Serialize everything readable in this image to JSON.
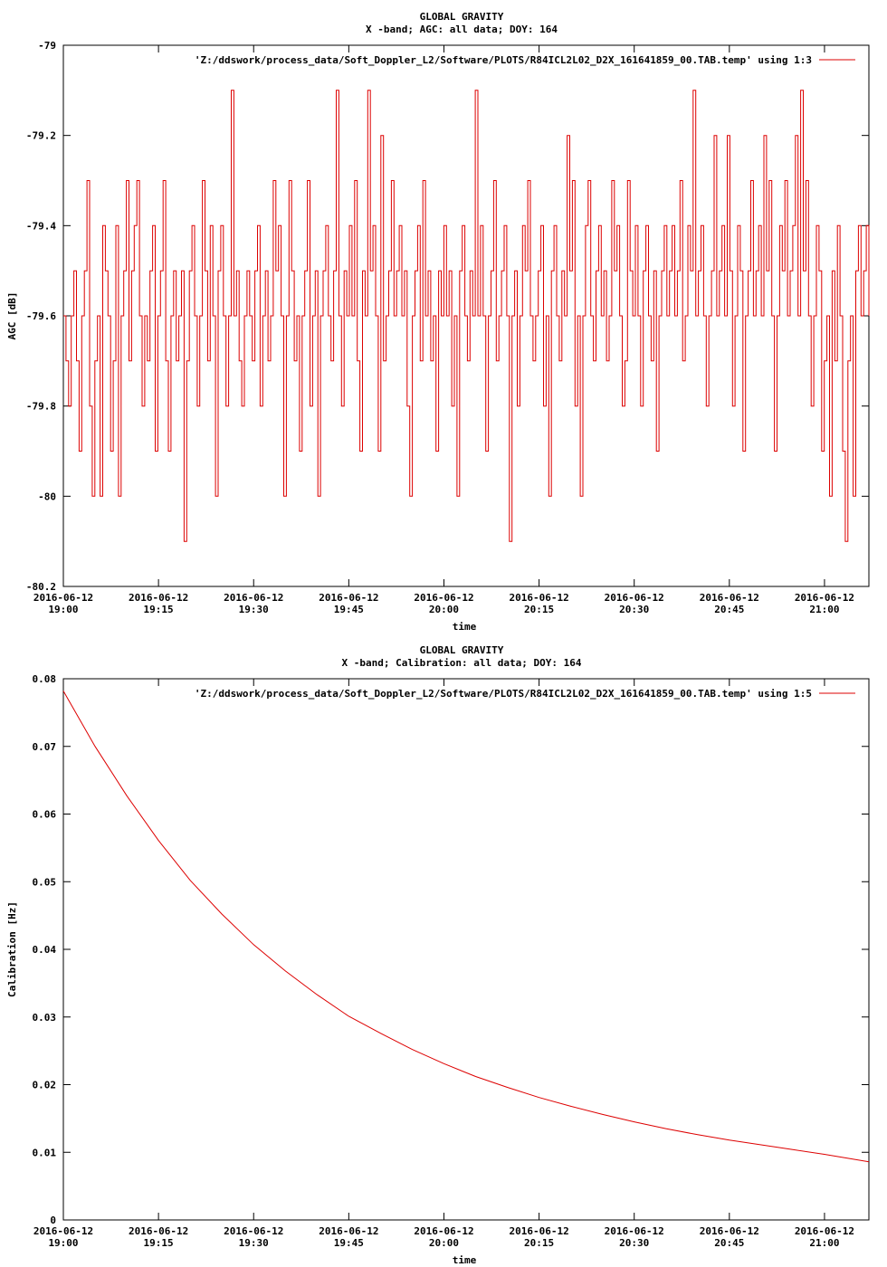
{
  "chart_data": [
    {
      "type": "line",
      "title": "GLOBAL GRAVITY",
      "subtitle": "X -band; AGC: all data; DOY: 164",
      "xlabel": "time",
      "ylabel": "AGC [dB]",
      "ylim": [
        -80.2,
        -79
      ],
      "xlim_minutes": [
        0,
        127
      ],
      "x_ticks": [
        {
          "minutes": 0,
          "line1": "2016-06-12",
          "line2": "19:00"
        },
        {
          "minutes": 15,
          "line1": "2016-06-12",
          "line2": "19:15"
        },
        {
          "minutes": 30,
          "line1": "2016-06-12",
          "line2": "19:30"
        },
        {
          "minutes": 45,
          "line1": "2016-06-12",
          "line2": "19:45"
        },
        {
          "minutes": 60,
          "line1": "2016-06-12",
          "line2": "20:00"
        },
        {
          "minutes": 75,
          "line1": "2016-06-12",
          "line2": "20:15"
        },
        {
          "minutes": 90,
          "line1": "2016-06-12",
          "line2": "20:30"
        },
        {
          "minutes": 105,
          "line1": "2016-06-12",
          "line2": "20:45"
        },
        {
          "minutes": 120,
          "line1": "2016-06-12",
          "line2": "21:00"
        }
      ],
      "y_ticks": [
        {
          "value": -79,
          "label": "-79"
        },
        {
          "value": -79.2,
          "label": "-79.2"
        },
        {
          "value": -79.4,
          "label": "-79.4"
        },
        {
          "value": -79.6,
          "label": "-79.6"
        },
        {
          "value": -79.8,
          "label": "-79.8"
        },
        {
          "value": -80,
          "label": "-80"
        },
        {
          "value": -80.2,
          "label": "-80.2"
        }
      ],
      "series": [
        {
          "name": "'Z:/ddswork/process_data/Soft_Doppler_L2/Software/PLOTS/R84ICL2L02_D2X_161641859_00.TAB.temp' using 1:3",
          "color": "#dd0000",
          "y_values_description": "noisy AGC samples between -80.1 and -79.1 dB, centred near -79.6 dB",
          "y": [
            -79.6,
            -79.7,
            -79.8,
            -79.6,
            -79.5,
            -79.7,
            -79.9,
            -79.6,
            -79.5,
            -79.3,
            -79.8,
            -80.0,
            -79.7,
            -79.6,
            -80.0,
            -79.4,
            -79.5,
            -79.6,
            -79.9,
            -79.7,
            -79.4,
            -80.0,
            -79.6,
            -79.5,
            -79.3,
            -79.7,
            -79.5,
            -79.4,
            -79.3,
            -79.6,
            -79.8,
            -79.6,
            -79.7,
            -79.5,
            -79.4,
            -79.9,
            -79.6,
            -79.5,
            -79.3,
            -79.7,
            -79.9,
            -79.6,
            -79.5,
            -79.7,
            -79.6,
            -79.5,
            -80.1,
            -79.7,
            -79.5,
            -79.4,
            -79.6,
            -79.8,
            -79.6,
            -79.3,
            -79.5,
            -79.7,
            -79.4,
            -79.6,
            -80.0,
            -79.5,
            -79.4,
            -79.6,
            -79.8,
            -79.6,
            -79.1,
            -79.6,
            -79.5,
            -79.7,
            -79.8,
            -79.6,
            -79.5,
            -79.6,
            -79.7,
            -79.5,
            -79.4,
            -79.8,
            -79.6,
            -79.5,
            -79.7,
            -79.6,
            -79.3,
            -79.5,
            -79.4,
            -79.6,
            -80.0,
            -79.6,
            -79.3,
            -79.5,
            -79.7,
            -79.6,
            -79.9,
            -79.6,
            -79.5,
            -79.3,
            -79.8,
            -79.6,
            -79.5,
            -80.0,
            -79.6,
            -79.5,
            -79.4,
            -79.6,
            -79.7,
            -79.5,
            -79.1,
            -79.6,
            -79.8,
            -79.5,
            -79.6,
            -79.4,
            -79.6,
            -79.3,
            -79.7,
            -79.9,
            -79.5,
            -79.6,
            -79.1,
            -79.5,
            -79.4,
            -79.6,
            -79.9,
            -79.2,
            -79.7,
            -79.6,
            -79.5,
            -79.3,
            -79.6,
            -79.5,
            -79.4,
            -79.6,
            -79.5,
            -79.8,
            -80.0,
            -79.6,
            -79.5,
            -79.4,
            -79.7,
            -79.3,
            -79.6,
            -79.5,
            -79.7,
            -79.6,
            -79.9,
            -79.5,
            -79.6,
            -79.4,
            -79.6,
            -79.5,
            -79.8,
            -79.6,
            -80.0,
            -79.5,
            -79.4,
            -79.6,
            -79.7,
            -79.5,
            -79.6,
            -79.1,
            -79.6,
            -79.4,
            -79.6,
            -79.9,
            -79.6,
            -79.5,
            -79.3,
            -79.7,
            -79.6,
            -79.5,
            -79.4,
            -79.6,
            -80.1,
            -79.6,
            -79.5,
            -79.8,
            -79.6,
            -79.4,
            -79.5,
            -79.3,
            -79.6,
            -79.7,
            -79.6,
            -79.5,
            -79.4,
            -79.8,
            -79.6,
            -80.0,
            -79.5,
            -79.4,
            -79.6,
            -79.7,
            -79.5,
            -79.6,
            -79.2,
            -79.5,
            -79.3,
            -79.8,
            -79.6,
            -80.0,
            -79.6,
            -79.4,
            -79.3,
            -79.6,
            -79.7,
            -79.5,
            -79.4,
            -79.6,
            -79.5,
            -79.7,
            -79.6,
            -79.3,
            -79.5,
            -79.4,
            -79.6,
            -79.8,
            -79.7,
            -79.3,
            -79.5,
            -79.6,
            -79.4,
            -79.6,
            -79.8,
            -79.5,
            -79.4,
            -79.6,
            -79.7,
            -79.5,
            -79.9,
            -79.6,
            -79.5,
            -79.4,
            -79.6,
            -79.5,
            -79.4,
            -79.6,
            -79.5,
            -79.3,
            -79.7,
            -79.6,
            -79.4,
            -79.5,
            -79.1,
            -79.6,
            -79.5,
            -79.4,
            -79.6,
            -79.8,
            -79.6,
            -79.5,
            -79.2,
            -79.6,
            -79.5,
            -79.4,
            -79.6,
            -79.2,
            -79.5,
            -79.8,
            -79.6,
            -79.4,
            -79.5,
            -79.9,
            -79.6,
            -79.5,
            -79.3,
            -79.6,
            -79.5,
            -79.4,
            -79.6,
            -79.2,
            -79.5,
            -79.3,
            -79.6,
            -79.9,
            -79.6,
            -79.4,
            -79.5,
            -79.3,
            -79.6,
            -79.5,
            -79.4,
            -79.2,
            -79.6,
            -79.1,
            -79.5,
            -79.3,
            -79.6,
            -79.8,
            -79.6,
            -79.4,
            -79.5,
            -79.9,
            -79.7,
            -79.6,
            -80.0,
            -79.5,
            -79.7,
            -79.4,
            -79.6,
            -79.9,
            -80.1,
            -79.7,
            -79.6,
            -80.0,
            -79.5,
            -79.4,
            -79.6,
            -79.5,
            -79.4,
            -79.6
          ]
        }
      ]
    },
    {
      "type": "line",
      "title": "GLOBAL GRAVITY",
      "subtitle": "X -band; Calibration: all data; DOY: 164",
      "xlabel": "time",
      "ylabel": "Calibration [Hz]",
      "ylim": [
        0,
        0.08
      ],
      "xlim_minutes": [
        0,
        127
      ],
      "x_ticks": [
        {
          "minutes": 0,
          "line1": "2016-06-12",
          "line2": "19:00"
        },
        {
          "minutes": 15,
          "line1": "2016-06-12",
          "line2": "19:15"
        },
        {
          "minutes": 30,
          "line1": "2016-06-12",
          "line2": "19:30"
        },
        {
          "minutes": 45,
          "line1": "2016-06-12",
          "line2": "19:45"
        },
        {
          "minutes": 60,
          "line1": "2016-06-12",
          "line2": "20:00"
        },
        {
          "minutes": 75,
          "line1": "2016-06-12",
          "line2": "20:15"
        },
        {
          "minutes": 90,
          "line1": "2016-06-12",
          "line2": "20:30"
        },
        {
          "minutes": 105,
          "line1": "2016-06-12",
          "line2": "20:45"
        },
        {
          "minutes": 120,
          "line1": "2016-06-12",
          "line2": "21:00"
        }
      ],
      "y_ticks": [
        {
          "value": 0.08,
          "label": "0.08"
        },
        {
          "value": 0.07,
          "label": "0.07"
        },
        {
          "value": 0.06,
          "label": "0.06"
        },
        {
          "value": 0.05,
          "label": "0.05"
        },
        {
          "value": 0.04,
          "label": "0.04"
        },
        {
          "value": 0.03,
          "label": "0.03"
        },
        {
          "value": 0.02,
          "label": "0.02"
        },
        {
          "value": 0.01,
          "label": "0.01"
        },
        {
          "value": 0,
          "label": "0"
        }
      ],
      "series": [
        {
          "name": "'Z:/ddswork/process_data/Soft_Doppler_L2/Software/PLOTS/R84ICL2L02_D2X_161641859_00.TAB.temp' using 1:5",
          "color": "#dd0000",
          "x_minutes": [
            0,
            5,
            10,
            15,
            20,
            25,
            30,
            35,
            40,
            45,
            50,
            55,
            60,
            65,
            70,
            75,
            80,
            85,
            90,
            95,
            100,
            105,
            110,
            115,
            120,
            127
          ],
          "y": [
            0.0782,
            0.07,
            0.0627,
            0.0561,
            0.0502,
            0.0452,
            0.0407,
            0.0368,
            0.0333,
            0.0301,
            0.0276,
            0.0252,
            0.0231,
            0.0212,
            0.0196,
            0.0181,
            0.0168,
            0.0156,
            0.0145,
            0.0135,
            0.0126,
            0.0118,
            0.0111,
            0.0104,
            0.0097,
            0.0086
          ]
        }
      ]
    }
  ]
}
